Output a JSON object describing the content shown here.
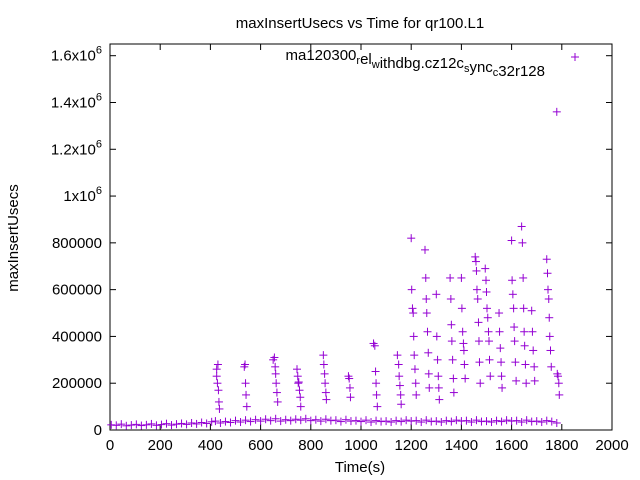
{
  "chart_data": {
    "type": "scatter",
    "title": "maxInsertUsecs vs Time for qr100.L1",
    "xlabel": "Time(s)",
    "ylabel": "maxInsertUsecs",
    "xlim": [
      0,
      2000
    ],
    "ylim": [
      0,
      1650000
    ],
    "grid": false,
    "legend": "top-right",
    "marker": "plus",
    "color": "#9400d3",
    "x_ticks": [
      {
        "value": 0,
        "label": "0"
      },
      {
        "value": 200,
        "label": "200"
      },
      {
        "value": 400,
        "label": "400"
      },
      {
        "value": 600,
        "label": "600"
      },
      {
        "value": 800,
        "label": "800"
      },
      {
        "value": 1000,
        "label": "1000"
      },
      {
        "value": 1200,
        "label": "1200"
      },
      {
        "value": 1400,
        "label": "1400"
      },
      {
        "value": 1600,
        "label": "1600"
      },
      {
        "value": 1800,
        "label": "1800"
      },
      {
        "value": 2000,
        "label": "2000"
      }
    ],
    "y_ticks": [
      {
        "value": 0,
        "label": "0"
      },
      {
        "value": 200000,
        "label": "200000"
      },
      {
        "value": 400000,
        "label": "400000"
      },
      {
        "value": 600000,
        "label": "600000"
      },
      {
        "value": 800000,
        "label": "800000"
      },
      {
        "value": 1000000,
        "label": "1x10",
        "exp": "6"
      },
      {
        "value": 1200000,
        "label": "1.2x10",
        "exp": "6"
      },
      {
        "value": 1400000,
        "label": "1.4x10",
        "exp": "6"
      },
      {
        "value": 1600000,
        "label": "1.6x10",
        "exp": "6"
      }
    ],
    "series": [
      {
        "name": "ma120300_rel_withdbg.cz12c_sync_c32r128",
        "legend_parts": [
          {
            "t": "ma120300",
            "sub": false
          },
          {
            "t": "r",
            "sub": true
          },
          {
            "t": "el",
            "sub": false
          },
          {
            "t": "w",
            "sub": true
          },
          {
            "t": "ithdbg.cz12c",
            "sub": false
          },
          {
            "t": "s",
            "sub": true
          },
          {
            "t": "ync",
            "sub": false
          },
          {
            "t": "c",
            "sub": true
          },
          {
            "t": "32r128",
            "sub": false
          }
        ],
        "points": [
          [
            5,
            22000
          ],
          [
            25,
            20000
          ],
          [
            45,
            25000
          ],
          [
            65,
            18000
          ],
          [
            85,
            21000
          ],
          [
            105,
            24000
          ],
          [
            125,
            19000
          ],
          [
            145,
            22000
          ],
          [
            165,
            26000
          ],
          [
            185,
            20000
          ],
          [
            205,
            23000
          ],
          [
            225,
            27000
          ],
          [
            245,
            21000
          ],
          [
            265,
            25000
          ],
          [
            285,
            28000
          ],
          [
            305,
            24000
          ],
          [
            325,
            30000
          ],
          [
            345,
            26000
          ],
          [
            365,
            32000
          ],
          [
            385,
            28000
          ],
          [
            405,
            35000
          ],
          [
            420,
            38000
          ],
          [
            440,
            30000
          ],
          [
            460,
            36000
          ],
          [
            480,
            32000
          ],
          [
            500,
            40000
          ],
          [
            520,
            34000
          ],
          [
            540,
            42000
          ],
          [
            560,
            36000
          ],
          [
            580,
            44000
          ],
          [
            600,
            38000
          ],
          [
            620,
            46000
          ],
          [
            640,
            40000
          ],
          [
            660,
            48000
          ],
          [
            680,
            38000
          ],
          [
            700,
            44000
          ],
          [
            720,
            40000
          ],
          [
            740,
            46000
          ],
          [
            760,
            42000
          ],
          [
            780,
            48000
          ],
          [
            800,
            40000
          ],
          [
            820,
            44000
          ],
          [
            840,
            38000
          ],
          [
            860,
            46000
          ],
          [
            880,
            40000
          ],
          [
            900,
            42000
          ],
          [
            920,
            36000
          ],
          [
            940,
            44000
          ],
          [
            960,
            38000
          ],
          [
            980,
            40000
          ],
          [
            1000,
            36000
          ],
          [
            1020,
            42000
          ],
          [
            1040,
            34000
          ],
          [
            1060,
            40000
          ],
          [
            1080,
            36000
          ],
          [
            1100,
            38000
          ],
          [
            1120,
            34000
          ],
          [
            1140,
            40000
          ],
          [
            1160,
            36000
          ],
          [
            1180,
            42000
          ],
          [
            1200,
            38000
          ],
          [
            1220,
            40000
          ],
          [
            1240,
            34000
          ],
          [
            1260,
            42000
          ],
          [
            1280,
            36000
          ],
          [
            1300,
            38000
          ],
          [
            1320,
            34000
          ],
          [
            1340,
            40000
          ],
          [
            1360,
            36000
          ],
          [
            1380,
            42000
          ],
          [
            1400,
            38000
          ],
          [
            1420,
            40000
          ],
          [
            1440,
            34000
          ],
          [
            1460,
            42000
          ],
          [
            1480,
            36000
          ],
          [
            1500,
            38000
          ],
          [
            1520,
            34000
          ],
          [
            1540,
            40000
          ],
          [
            1560,
            36000
          ],
          [
            1580,
            42000
          ],
          [
            1600,
            38000
          ],
          [
            1620,
            40000
          ],
          [
            1640,
            34000
          ],
          [
            1660,
            42000
          ],
          [
            1680,
            36000
          ],
          [
            1700,
            38000
          ],
          [
            1720,
            34000
          ],
          [
            1740,
            40000
          ],
          [
            1760,
            36000
          ],
          [
            1780,
            30000
          ],
          [
            425,
            260000
          ],
          [
            425,
            230000
          ],
          [
            428,
            200000
          ],
          [
            430,
            280000
          ],
          [
            432,
            170000
          ],
          [
            434,
            120000
          ],
          [
            436,
            90000
          ],
          [
            535,
            270000
          ],
          [
            538,
            280000
          ],
          [
            540,
            200000
          ],
          [
            542,
            150000
          ],
          [
            545,
            100000
          ],
          [
            650,
            300000
          ],
          [
            655,
            310000
          ],
          [
            658,
            270000
          ],
          [
            660,
            240000
          ],
          [
            662,
            200000
          ],
          [
            665,
            160000
          ],
          [
            668,
            120000
          ],
          [
            745,
            260000
          ],
          [
            748,
            230000
          ],
          [
            750,
            200000
          ],
          [
            752,
            205000
          ],
          [
            755,
            170000
          ],
          [
            758,
            140000
          ],
          [
            760,
            100000
          ],
          [
            850,
            320000
          ],
          [
            852,
            280000
          ],
          [
            855,
            240000
          ],
          [
            857,
            200000
          ],
          [
            860,
            160000
          ],
          [
            862,
            130000
          ],
          [
            950,
            230000
          ],
          [
            953,
            220000
          ],
          [
            956,
            180000
          ],
          [
            958,
            140000
          ],
          [
            1050,
            370000
          ],
          [
            1055,
            360000
          ],
          [
            1058,
            250000
          ],
          [
            1060,
            200000
          ],
          [
            1062,
            150000
          ],
          [
            1065,
            100000
          ],
          [
            1145,
            320000
          ],
          [
            1150,
            280000
          ],
          [
            1152,
            230000
          ],
          [
            1155,
            190000
          ],
          [
            1158,
            150000
          ],
          [
            1160,
            110000
          ],
          [
            1200,
            820000
          ],
          [
            1202,
            600000
          ],
          [
            1205,
            520000
          ],
          [
            1208,
            500000
          ],
          [
            1210,
            400000
          ],
          [
            1212,
            320000
          ],
          [
            1215,
            260000
          ],
          [
            1218,
            200000
          ],
          [
            1220,
            150000
          ],
          [
            1255,
            770000
          ],
          [
            1258,
            650000
          ],
          [
            1260,
            560000
          ],
          [
            1262,
            500000
          ],
          [
            1265,
            420000
          ],
          [
            1268,
            330000
          ],
          [
            1270,
            240000
          ],
          [
            1272,
            180000
          ],
          [
            1300,
            580000
          ],
          [
            1302,
            400000
          ],
          [
            1305,
            300000
          ],
          [
            1308,
            230000
          ],
          [
            1310,
            180000
          ],
          [
            1312,
            130000
          ],
          [
            1355,
            650000
          ],
          [
            1358,
            560000
          ],
          [
            1360,
            450000
          ],
          [
            1362,
            380000
          ],
          [
            1365,
            300000
          ],
          [
            1368,
            220000
          ],
          [
            1370,
            160000
          ],
          [
            1400,
            650000
          ],
          [
            1402,
            520000
          ],
          [
            1405,
            420000
          ],
          [
            1408,
            370000
          ],
          [
            1410,
            340000
          ],
          [
            1412,
            280000
          ],
          [
            1415,
            220000
          ],
          [
            1455,
            740000
          ],
          [
            1458,
            720000
          ],
          [
            1460,
            680000
          ],
          [
            1462,
            600000
          ],
          [
            1465,
            560000
          ],
          [
            1468,
            460000
          ],
          [
            1470,
            380000
          ],
          [
            1472,
            290000
          ],
          [
            1475,
            200000
          ],
          [
            1495,
            690000
          ],
          [
            1498,
            640000
          ],
          [
            1500,
            590000
          ],
          [
            1502,
            520000
          ],
          [
            1505,
            480000
          ],
          [
            1508,
            420000
          ],
          [
            1510,
            380000
          ],
          [
            1512,
            300000
          ],
          [
            1515,
            230000
          ],
          [
            1550,
            500000
          ],
          [
            1552,
            420000
          ],
          [
            1555,
            350000
          ],
          [
            1558,
            290000
          ],
          [
            1560,
            230000
          ],
          [
            1562,
            180000
          ],
          [
            1600,
            810000
          ],
          [
            1602,
            640000
          ],
          [
            1605,
            580000
          ],
          [
            1608,
            520000
          ],
          [
            1610,
            440000
          ],
          [
            1612,
            380000
          ],
          [
            1615,
            290000
          ],
          [
            1618,
            210000
          ],
          [
            1640,
            870000
          ],
          [
            1643,
            800000
          ],
          [
            1646,
            650000
          ],
          [
            1648,
            520000
          ],
          [
            1650,
            420000
          ],
          [
            1652,
            360000
          ],
          [
            1655,
            280000
          ],
          [
            1658,
            200000
          ],
          [
            1680,
            510000
          ],
          [
            1683,
            420000
          ],
          [
            1686,
            340000
          ],
          [
            1690,
            270000
          ],
          [
            1692,
            210000
          ],
          [
            1740,
            730000
          ],
          [
            1743,
            670000
          ],
          [
            1745,
            600000
          ],
          [
            1748,
            560000
          ],
          [
            1750,
            480000
          ],
          [
            1752,
            400000
          ],
          [
            1755,
            340000
          ],
          [
            1758,
            270000
          ],
          [
            1780,
            1360000
          ],
          [
            1782,
            240000
          ],
          [
            1785,
            230000
          ],
          [
            1788,
            200000
          ],
          [
            1790,
            150000
          ]
        ]
      }
    ]
  }
}
